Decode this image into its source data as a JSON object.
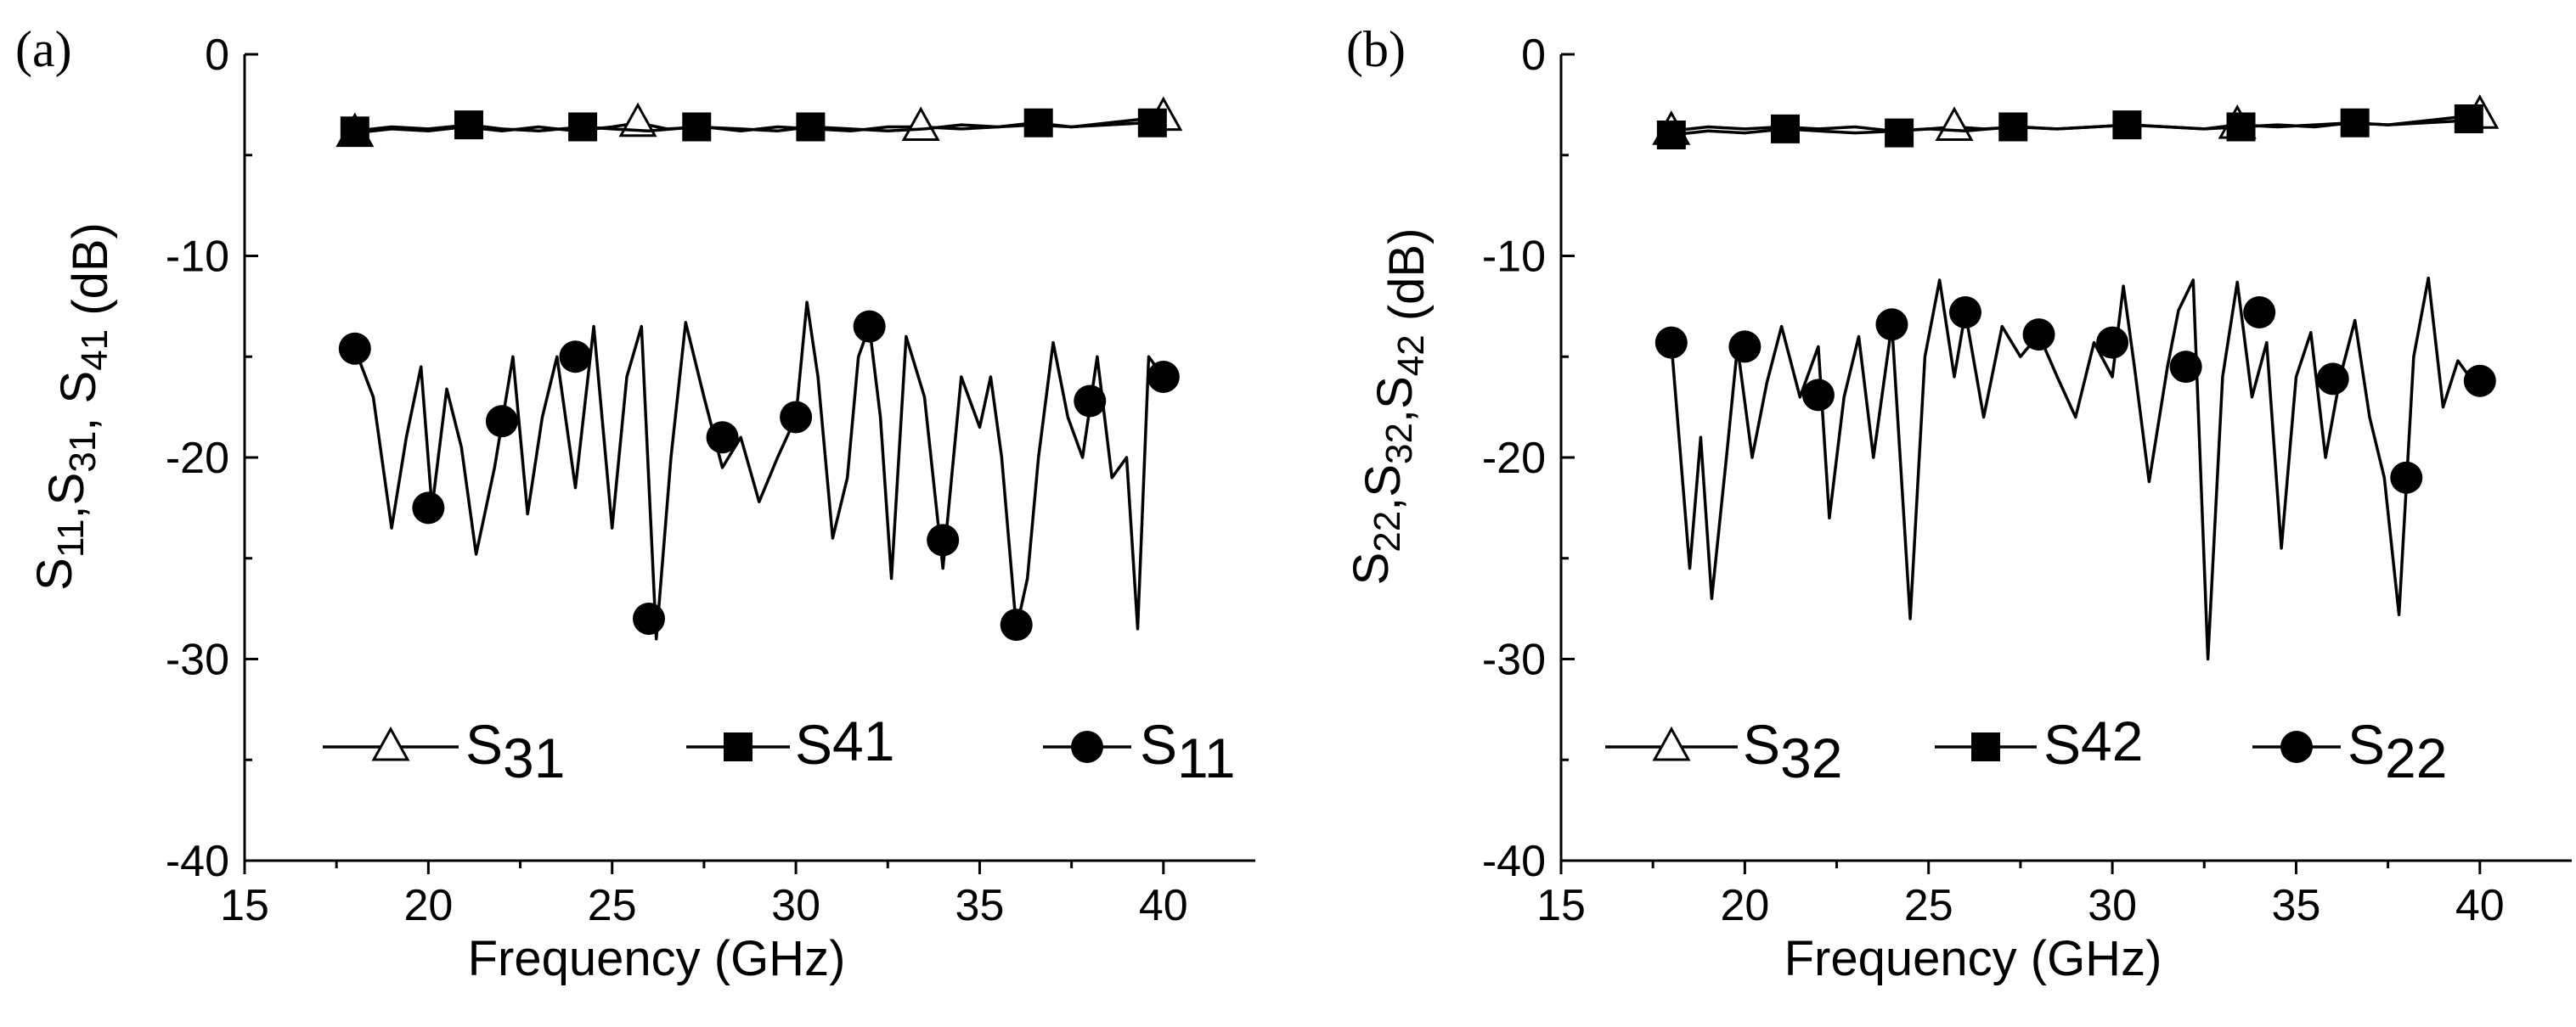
{
  "chart_data": [
    {
      "type": "line",
      "panel_label": "(a)",
      "xlabel": "Frequency (GHz)",
      "ylabel": {
        "parts": [
          [
            "S",
            "11"
          ],
          [
            ",S",
            "31"
          ],
          [
            ", S",
            "41"
          ],
          [
            " (dB)",
            ""
          ]
        ]
      },
      "xlim": [
        15,
        42.5
      ],
      "ylim": [
        -40,
        0
      ],
      "xticks": [
        15,
        20,
        25,
        30,
        35,
        40
      ],
      "yticks": [
        0,
        -10,
        -20,
        -30,
        -40
      ],
      "grid": false,
      "legend_position": "bottom",
      "series": [
        {
          "name": "S31",
          "legend_main": "S",
          "legend_sub": "31",
          "marker": "triangle-open",
          "x": [
            18,
            19,
            20,
            21,
            22,
            23,
            24,
            25,
            25.7,
            26.5,
            27.5,
            28.5,
            29.5,
            30.5,
            31.5,
            32.5,
            33.4,
            34.5,
            35.5,
            36.5,
            37.5,
            38.5,
            39.5,
            40
          ],
          "y": [
            -3.9,
            -3.7,
            -3.8,
            -3.6,
            -3.8,
            -3.6,
            -3.8,
            -3.6,
            -3.4,
            -3.7,
            -3.6,
            -3.8,
            -3.6,
            -3.7,
            -3.8,
            -3.6,
            -3.6,
            -3.7,
            -3.6,
            -3.5,
            -3.6,
            -3.4,
            -3.2,
            -3.1
          ],
          "marker_x": [
            18,
            25.7,
            33.4,
            40
          ],
          "marker_y": [
            -3.9,
            -3.4,
            -3.6,
            -3.1
          ]
        },
        {
          "name": "S41",
          "legend_main": "S",
          "legend_sub": "41",
          "marker": "square-filled",
          "x": [
            18,
            19,
            20,
            21.1,
            22,
            23,
            24.2,
            25,
            26,
            27.3,
            28.5,
            29.5,
            30.4,
            31.5,
            32.5,
            33.5,
            34.5,
            35.5,
            36.5,
            37.5,
            38.5,
            39.5,
            40
          ],
          "y": [
            -3.8,
            -3.6,
            -3.7,
            -3.5,
            -3.7,
            -3.8,
            -3.6,
            -3.7,
            -3.8,
            -3.6,
            -3.7,
            -3.8,
            -3.6,
            -3.7,
            -3.8,
            -3.7,
            -3.5,
            -3.6,
            -3.4,
            -3.6,
            -3.5,
            -3.4,
            -3.3
          ],
          "marker_x": [
            18,
            21.1,
            24.2,
            27.3,
            30.4,
            36.6,
            39.7
          ],
          "marker_y": [
            -3.8,
            -3.5,
            -3.6,
            -3.6,
            -3.6,
            -3.4,
            -3.4
          ]
        },
        {
          "name": "S11",
          "legend_main": "S",
          "legend_sub": "11",
          "marker": "circle-filled",
          "x": [
            18,
            18.5,
            19,
            19.4,
            19.8,
            20.1,
            20.5,
            20.9,
            21.3,
            21.8,
            22.3,
            22.7,
            23.1,
            23.5,
            24,
            24.5,
            25,
            25.4,
            25.8,
            26.2,
            26.6,
            27,
            27.5,
            28,
            28.5,
            29,
            29.5,
            30,
            30.3,
            30.6,
            31,
            31.4,
            31.7,
            32,
            32.3,
            32.6,
            33,
            33.5,
            34,
            34.5,
            35,
            35.3,
            35.6,
            36,
            36.3,
            36.6,
            37,
            37.4,
            37.8,
            38.2,
            38.6,
            39,
            39.3,
            39.6,
            40
          ],
          "y": [
            -14.6,
            -17,
            -23.5,
            -19,
            -15.5,
            -22.5,
            -16.6,
            -19.5,
            -24.8,
            -20.5,
            -15,
            -22.8,
            -18,
            -15,
            -21.5,
            -13.5,
            -23.5,
            -16,
            -13.5,
            -29,
            -20,
            -13.3,
            -17,
            -20.5,
            -19,
            -22.2,
            -20,
            -18,
            -12.3,
            -16,
            -24,
            -21,
            -15,
            -13.5,
            -18,
            -26,
            -14,
            -17,
            -25.5,
            -16,
            -18.5,
            -16,
            -20,
            -28.5,
            -26,
            -20,
            -14.3,
            -18,
            -20,
            -15,
            -21,
            -20,
            -28.5,
            -15,
            -16
          ],
          "marker_x": [
            18,
            20,
            22,
            24,
            26,
            28,
            30,
            32,
            34,
            36,
            38,
            40
          ],
          "marker_y": [
            -14.6,
            -22.5,
            -18.2,
            -15,
            -28,
            -19,
            -18,
            -13.5,
            -24.1,
            -28.3,
            -17.2,
            -16
          ]
        }
      ]
    },
    {
      "type": "line",
      "panel_label": "(b)",
      "xlabel": "Frequency (GHz)",
      "ylabel": {
        "parts": [
          [
            "S",
            "22"
          ],
          [
            ",S",
            "32"
          ],
          [
            ",S",
            "42"
          ],
          [
            " (dB)",
            ""
          ]
        ]
      },
      "xlim": [
        15,
        42.5
      ],
      "ylim": [
        -40,
        0
      ],
      "xticks": [
        15,
        20,
        25,
        30,
        35,
        40
      ],
      "yticks": [
        0,
        -10,
        -20,
        -30,
        -40
      ],
      "grid": false,
      "legend_position": "bottom",
      "series": [
        {
          "name": "S32",
          "legend_main": "S",
          "legend_sub": "32",
          "marker": "triangle-open",
          "x": [
            18,
            19,
            20,
            21,
            22,
            23,
            24,
            25,
            25.7,
            26.5,
            27.5,
            28.5,
            29.5,
            30.5,
            31.5,
            32.5,
            33.4,
            34.5,
            35.5,
            36.5,
            37.5,
            38.5,
            39.5,
            40
          ],
          "y": [
            -3.8,
            -3.6,
            -3.7,
            -3.6,
            -3.7,
            -3.6,
            -3.8,
            -3.7,
            -3.6,
            -3.7,
            -3.6,
            -3.7,
            -3.6,
            -3.5,
            -3.6,
            -3.7,
            -3.5,
            -3.6,
            -3.5,
            -3.4,
            -3.5,
            -3.3,
            -3.1,
            -3.0
          ],
          "marker_x": [
            18,
            25.7,
            33.4,
            40
          ],
          "marker_y": [
            -3.8,
            -3.6,
            -3.5,
            -3.0
          ]
        },
        {
          "name": "S42",
          "legend_main": "S",
          "legend_sub": "42",
          "marker": "square-filled",
          "x": [
            18,
            19,
            20,
            21.1,
            22,
            23,
            24.2,
            25,
            26,
            27.3,
            28.5,
            29.5,
            30.4,
            31.5,
            32.5,
            33.5,
            34.5,
            35.5,
            36.5,
            37.5,
            38.5,
            39.5,
            40
          ],
          "y": [
            -4.0,
            -3.8,
            -3.9,
            -3.7,
            -3.8,
            -3.9,
            -3.8,
            -3.7,
            -3.8,
            -3.6,
            -3.7,
            -3.6,
            -3.5,
            -3.6,
            -3.7,
            -3.6,
            -3.5,
            -3.6,
            -3.4,
            -3.5,
            -3.4,
            -3.3,
            -3.2
          ],
          "marker_x": [
            18,
            21.1,
            24.2,
            27.3,
            30.4,
            33.5,
            36.6,
            39.7
          ],
          "marker_y": [
            -4.0,
            -3.7,
            -3.9,
            -3.6,
            -3.5,
            -3.6,
            -3.4,
            -3.2
          ]
        },
        {
          "name": "S22",
          "legend_main": "S",
          "legend_sub": "22",
          "marker": "circle-filled",
          "x": [
            18,
            18.5,
            18.8,
            19.1,
            19.5,
            19.8,
            20.2,
            20.6,
            21,
            21.5,
            22,
            22.3,
            22.7,
            23.1,
            23.5,
            24,
            24.5,
            24.9,
            25.3,
            25.7,
            26,
            26.5,
            27,
            27.5,
            28,
            28.5,
            29,
            29.5,
            30,
            30.3,
            30.6,
            31,
            31.5,
            31.8,
            32.2,
            32.6,
            33,
            33.4,
            33.8,
            34.2,
            34.6,
            35,
            35.4,
            35.8,
            36.2,
            36.6,
            37,
            37.4,
            37.8,
            38.2,
            38.6,
            39,
            39.4,
            39.8,
            40
          ],
          "y": [
            -14.3,
            -25.5,
            -19,
            -27,
            -20,
            -14.5,
            -20,
            -16.3,
            -13.5,
            -17,
            -14.5,
            -23,
            -17,
            -14,
            -20,
            -13.4,
            -28,
            -15,
            -11.2,
            -16,
            -12.8,
            -18,
            -13.5,
            -15,
            -13.9,
            -16,
            -18,
            -14.3,
            -16,
            -11.5,
            -15.5,
            -21.2,
            -15.5,
            -12.7,
            -11.2,
            -30,
            -16,
            -11.3,
            -17,
            -14.3,
            -24.5,
            -16,
            -13.8,
            -20,
            -16,
            -13.2,
            -18,
            -21,
            -27.8,
            -15,
            -11.1,
            -17.5,
            -15.2,
            -16.2,
            -16.2
          ],
          "marker_x": [
            18,
            20,
            22,
            24,
            26,
            28,
            30,
            32,
            34,
            36,
            38,
            40
          ],
          "marker_y": [
            -14.3,
            -14.5,
            -16.9,
            -13.4,
            -12.8,
            -13.9,
            -14.3,
            -15.5,
            -12.8,
            -16.1,
            -21,
            -16.2
          ]
        }
      ]
    }
  ]
}
